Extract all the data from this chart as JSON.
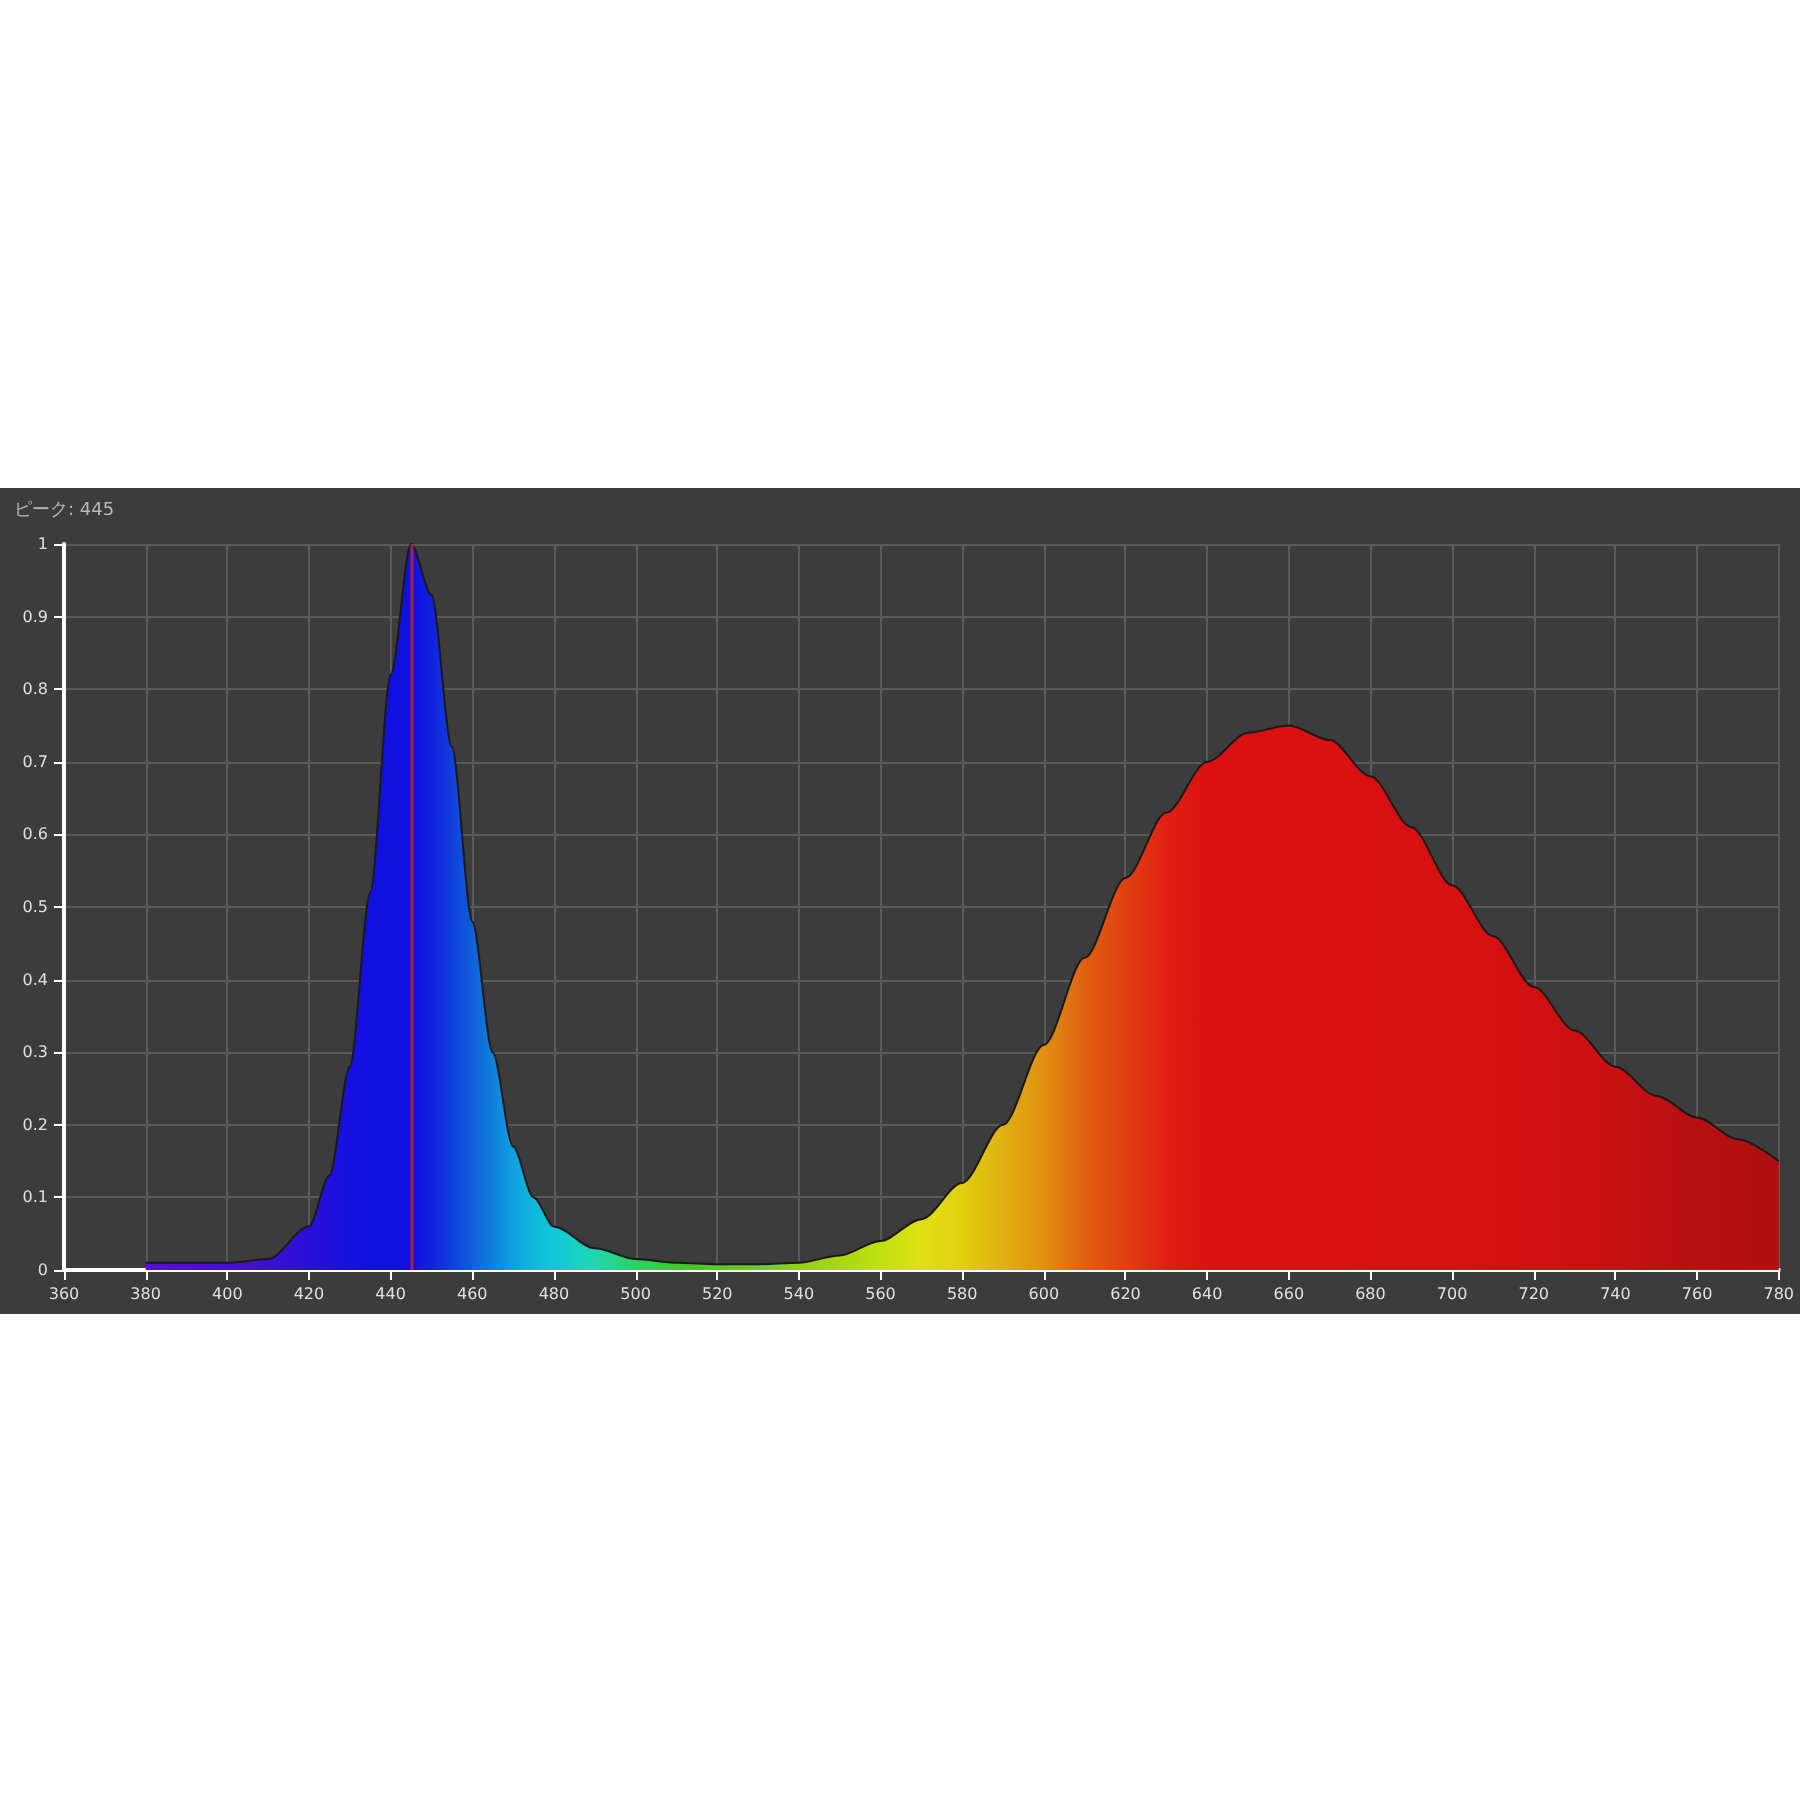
{
  "chart_data": {
    "type": "area",
    "title": "ピーク: 445",
    "x": [
      380,
      400,
      410,
      420,
      425,
      430,
      435,
      440,
      445,
      450,
      455,
      460,
      465,
      470,
      475,
      480,
      490,
      500,
      510,
      520,
      530,
      540,
      550,
      560,
      570,
      580,
      590,
      600,
      610,
      620,
      630,
      640,
      650,
      660,
      670,
      680,
      690,
      700,
      710,
      720,
      730,
      740,
      750,
      760,
      770,
      780
    ],
    "series": [
      {
        "color": "#1a1a1a",
        "values": [
          0.01,
          0.01,
          0.015,
          0.06,
          0.13,
          0.28,
          0.52,
          0.82,
          1.0,
          0.93,
          0.72,
          0.48,
          0.3,
          0.17,
          0.1,
          0.06,
          0.03,
          0.015,
          0.01,
          0.008,
          0.008,
          0.01,
          0.02,
          0.04,
          0.07,
          0.12,
          0.2,
          0.31,
          0.43,
          0.54,
          0.63,
          0.7,
          0.74,
          0.75,
          0.73,
          0.68,
          0.61,
          0.53,
          0.46,
          0.39,
          0.33,
          0.28,
          0.24,
          0.21,
          0.18,
          0.15
        ],
        "colors": [
          "#5a10c8",
          "#4a10cc",
          "#3a10d0",
          "#2a10d8",
          "#2010dc",
          "#1510e0",
          "#1010e0",
          "#1010e0",
          "#1010e0",
          "#1020e0",
          "#1040dc",
          "#1060d8",
          "#1080dc",
          "#10a0e0",
          "#10b8dc",
          "#10c8d8",
          "#20d8b0",
          "#30d060",
          "#40c830",
          "#58c820",
          "#70cc18",
          "#90d010",
          "#a8d810",
          "#c0e010",
          "#e0e010",
          "#e0d010",
          "#e0b010",
          "#e09010",
          "#e06010",
          "#e04010",
          "#e02010",
          "#dc1010",
          "#dc1010",
          "#dc1010",
          "#dc1010",
          "#da1010",
          "#d81010",
          "#d81010",
          "#d41010",
          "#d01010",
          "#cc1010",
          "#c81010",
          "#c01010",
          "#b81010",
          "#b41010",
          "#b01010"
        ]
      }
    ],
    "xlim": [
      360,
      780
    ],
    "xticks": [
      360,
      380,
      400,
      420,
      440,
      460,
      480,
      500,
      520,
      540,
      560,
      580,
      600,
      620,
      640,
      660,
      680,
      700,
      720,
      740,
      760,
      780
    ],
    "ylim": [
      0,
      1
    ],
    "yticks": [
      0,
      0.1,
      0.2,
      0.3,
      0.4,
      0.5,
      0.6,
      0.7,
      0.8,
      0.9,
      1
    ],
    "grid": true,
    "ref_lines": [
      {
        "axis": "x",
        "value": 445,
        "color": "#a8203c"
      }
    ]
  }
}
